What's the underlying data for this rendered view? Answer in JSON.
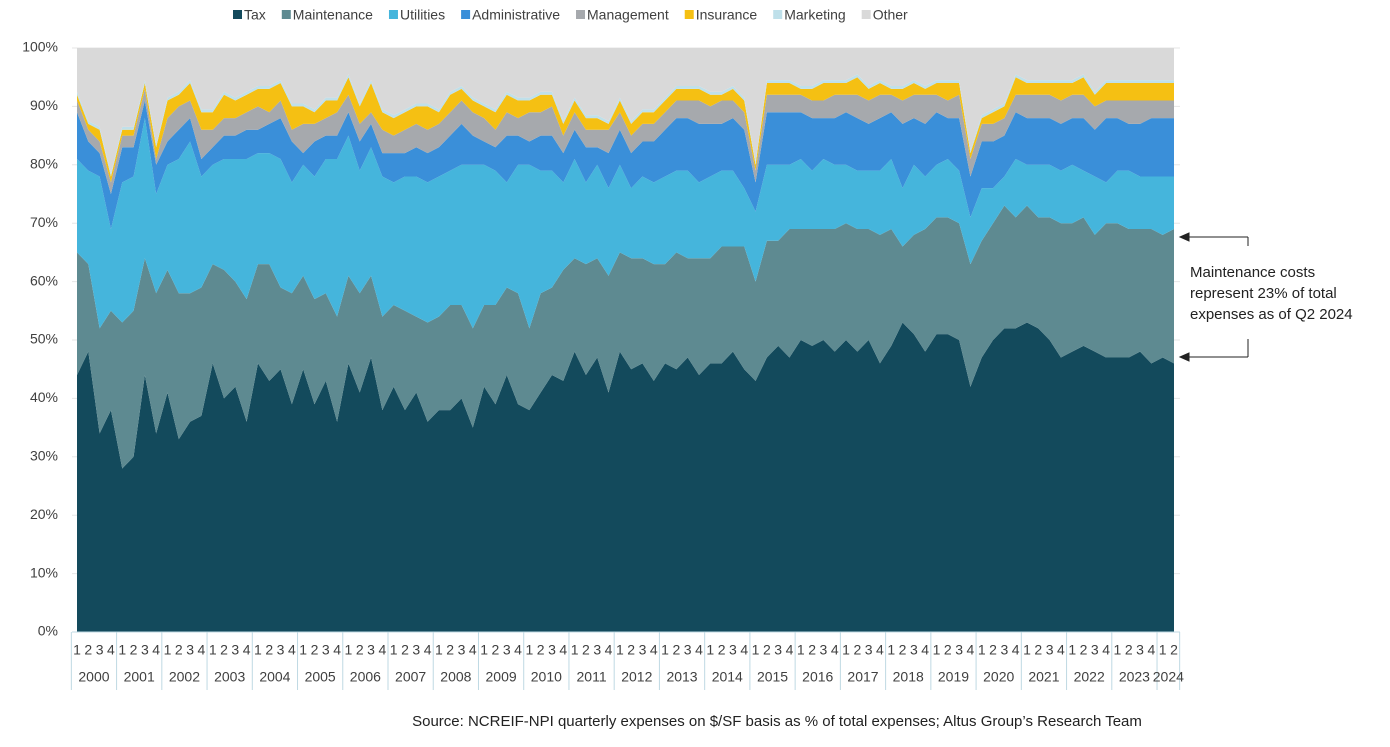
{
  "chart_data": {
    "type": "stacked_area",
    "categories": [
      "1",
      "2",
      "3",
      "4",
      "1",
      "2",
      "3",
      "4",
      "1",
      "2",
      "3",
      "4",
      "1",
      "2",
      "3",
      "4",
      "1",
      "2",
      "3",
      "4",
      "1",
      "2",
      "3",
      "4",
      "1",
      "2",
      "3",
      "4",
      "1",
      "2",
      "3",
      "4",
      "1",
      "2",
      "3",
      "4",
      "1",
      "2",
      "3",
      "4",
      "1",
      "2",
      "3",
      "4",
      "1",
      "2",
      "3",
      "4",
      "1",
      "2",
      "3",
      "4",
      "1",
      "2",
      "3",
      "4",
      "1",
      "2",
      "3",
      "4",
      "1",
      "2",
      "3",
      "4",
      "1",
      "2",
      "3",
      "4",
      "1",
      "2",
      "3",
      "4",
      "1",
      "2",
      "3",
      "4",
      "1",
      "2",
      "3",
      "4",
      "1",
      "2",
      "3",
      "4",
      "1",
      "2",
      "3",
      "4",
      "1",
      "2",
      "3",
      "4",
      "1",
      "2",
      "3",
      "4",
      "1",
      "2"
    ],
    "years": [
      "2000",
      "2001",
      "2002",
      "2003",
      "2004",
      "2005",
      "2006",
      "2007",
      "2008",
      "2009",
      "2010",
      "2011",
      "2012",
      "2013",
      "2014",
      "2015",
      "2016",
      "2017",
      "2018",
      "2019",
      "2020",
      "2021",
      "2022",
      "2023",
      "2024"
    ],
    "ylim": [
      0,
      100
    ],
    "yticks": [
      {
        "value": 0,
        "label": "0%"
      },
      {
        "value": 10,
        "label": "10%"
      },
      {
        "value": 20,
        "label": "20%"
      },
      {
        "value": 30,
        "label": "30%"
      },
      {
        "value": 40,
        "label": "40%"
      },
      {
        "value": 50,
        "label": "50%"
      },
      {
        "value": 60,
        "label": "60%"
      },
      {
        "value": 70,
        "label": "70%"
      },
      {
        "value": 80,
        "label": "80%"
      },
      {
        "value": 90,
        "label": "90%"
      },
      {
        "value": 100,
        "label": "100%"
      }
    ],
    "grid": true,
    "legend": "top",
    "series": [
      {
        "name": "Tax",
        "color": "#134a5c",
        "values": [
          44,
          48,
          34,
          38,
          28,
          30,
          44,
          34,
          41,
          33,
          36,
          37,
          46,
          40,
          42,
          36,
          46,
          43,
          45,
          39,
          45,
          39,
          43,
          36,
          46,
          41,
          47,
          38,
          42,
          38,
          41,
          36,
          38,
          38,
          40,
          35,
          42,
          39,
          44,
          39,
          38,
          41,
          44,
          43,
          48,
          44,
          47,
          41,
          48,
          45,
          46,
          43,
          46,
          45,
          47,
          44,
          46,
          46,
          48,
          45,
          43,
          47,
          49,
          47,
          50,
          49,
          50,
          48,
          50,
          48,
          50,
          46,
          49,
          53,
          51,
          48,
          51,
          51,
          50,
          42,
          47,
          50,
          52,
          52,
          53,
          52,
          50,
          47,
          48,
          49,
          48,
          47,
          47,
          47,
          48,
          46,
          47,
          46
        ]
      },
      {
        "name": "Maintenance",
        "color": "#5e8a91",
        "values": [
          21,
          15,
          18,
          17,
          25,
          25,
          20,
          24,
          21,
          25,
          22,
          22,
          17,
          22,
          18,
          21,
          17,
          20,
          14,
          19,
          16,
          18,
          15,
          18,
          15,
          17,
          14,
          16,
          14,
          17,
          13,
          17,
          16,
          18,
          16,
          17,
          14,
          17,
          15,
          19,
          14,
          17,
          15,
          19,
          16,
          19,
          17,
          20,
          17,
          19,
          18,
          20,
          17,
          20,
          17,
          20,
          18,
          20,
          18,
          21,
          17,
          20,
          18,
          22,
          19,
          20,
          19,
          21,
          20,
          21,
          19,
          22,
          20,
          13,
          17,
          21,
          20,
          20,
          20,
          21,
          20,
          20,
          21,
          19,
          20,
          19,
          21,
          23,
          22,
          22,
          20,
          23,
          23,
          22,
          21,
          23,
          21,
          23
        ]
      },
      {
        "name": "Utilities",
        "color": "#45b5dc",
        "values": [
          16,
          16,
          26,
          14,
          24,
          23,
          24,
          17,
          18,
          23,
          26,
          19,
          17,
          19,
          21,
          24,
          19,
          19,
          22,
          19,
          19,
          21,
          23,
          27,
          24,
          21,
          22,
          24,
          21,
          23,
          24,
          24,
          24,
          23,
          24,
          28,
          24,
          23,
          18,
          22,
          28,
          21,
          20,
          15,
          17,
          14,
          16,
          15,
          15,
          12,
          14,
          14,
          15,
          14,
          15,
          13,
          14,
          13,
          13,
          10,
          12,
          13,
          13,
          11,
          12,
          10,
          12,
          11,
          10,
          10,
          10,
          11,
          12,
          10,
          12,
          9,
          9,
          10,
          9,
          8,
          9,
          6,
          5,
          10,
          7,
          9,
          9,
          9,
          10,
          8,
          10,
          7,
          9,
          10,
          9,
          9,
          10,
          9
        ]
      },
      {
        "name": "Administrative",
        "color": "#3a8fd9",
        "values": [
          8,
          5,
          4,
          6,
          6,
          5,
          3,
          5,
          4,
          5,
          4,
          3,
          3,
          4,
          4,
          5,
          4,
          5,
          7,
          7,
          2,
          6,
          4,
          4,
          4,
          5,
          4,
          4,
          5,
          4,
          5,
          5,
          5,
          6,
          7,
          5,
          4,
          4,
          8,
          5,
          4,
          6,
          6,
          5,
          5,
          6,
          3,
          6,
          6,
          6,
          6,
          7,
          8,
          9,
          9,
          10,
          9,
          8,
          9,
          10,
          5,
          9,
          9,
          9,
          8,
          9,
          7,
          8,
          9,
          9,
          8,
          9,
          8,
          11,
          8,
          9,
          9,
          7,
          9,
          7,
          8,
          8,
          7,
          8,
          8,
          8,
          8,
          8,
          8,
          9,
          8,
          11,
          9,
          8,
          9,
          10,
          10,
          10
        ]
      },
      {
        "name": "Management",
        "color": "#a6a9ad",
        "values": [
          2,
          2,
          2,
          2,
          2,
          2,
          2,
          1,
          4,
          4,
          3,
          5,
          3,
          3,
          3,
          3,
          4,
          2,
          3,
          2,
          5,
          3,
          3,
          4,
          3,
          3,
          2,
          4,
          3,
          4,
          4,
          4,
          4,
          4,
          4,
          4,
          4,
          3,
          4,
          3,
          5,
          4,
          5,
          3,
          3,
          3,
          3,
          4,
          3,
          3,
          3,
          3,
          3,
          3,
          3,
          4,
          3,
          4,
          3,
          3,
          2,
          3,
          3,
          3,
          3,
          3,
          3,
          4,
          3,
          4,
          4,
          4,
          3,
          4,
          4,
          5,
          3,
          3,
          4,
          3,
          3,
          3,
          3,
          3,
          4,
          4,
          4,
          4,
          4,
          4,
          4,
          3,
          3,
          4,
          4,
          3,
          3,
          3
        ]
      },
      {
        "name": "Insurance",
        "color": "#f5c013",
        "values": [
          1,
          1,
          2,
          1,
          1,
          1,
          1,
          2,
          3,
          2,
          3,
          3,
          3,
          4,
          3,
          3,
          3,
          4,
          3,
          4,
          3,
          2,
          3,
          2,
          3,
          3,
          5,
          3,
          3,
          3,
          3,
          4,
          2,
          3,
          2,
          2,
          2,
          3,
          3,
          3,
          2,
          3,
          2,
          2,
          2,
          2,
          2,
          1,
          2,
          2,
          2,
          2,
          2,
          2,
          2,
          2,
          2,
          1,
          2,
          2,
          1,
          2,
          2,
          2,
          1,
          2,
          3,
          2,
          2,
          3,
          2,
          2,
          1,
          2,
          2,
          1,
          2,
          3,
          2,
          1,
          1,
          2,
          2,
          3,
          2,
          2,
          2,
          3,
          2,
          3,
          2,
          3,
          3,
          3,
          3,
          3,
          3,
          3
        ]
      },
      {
        "name": "Marketing",
        "color": "#bfe0ea",
        "values": [
          0.5,
          0.5,
          0.5,
          0.5,
          0.5,
          0.5,
          0.5,
          0.5,
          0.5,
          0.5,
          0.5,
          0.5,
          0.5,
          0.5,
          0.5,
          0.5,
          0.5,
          0.5,
          0.5,
          0.5,
          0.5,
          0.5,
          0.5,
          0.5,
          0.5,
          0.5,
          0.5,
          0.5,
          0.5,
          0.5,
          0.5,
          0.5,
          0.5,
          0.5,
          0.5,
          0.5,
          0.5,
          0.5,
          0.5,
          0.5,
          0.5,
          0.5,
          0.5,
          0.5,
          0.5,
          0.5,
          0.5,
          0.5,
          0.5,
          0.5,
          0.5,
          0.5,
          0.5,
          0.5,
          0.5,
          0.5,
          0.5,
          0.5,
          0.5,
          0.5,
          0.5,
          0.5,
          0.5,
          0.5,
          0.5,
          0.5,
          0.5,
          0.5,
          0.5,
          0.5,
          0.5,
          0.5,
          0.5,
          0.5,
          0.5,
          0.5,
          0.5,
          0.5,
          0.5,
          0.5,
          0.5,
          0.5,
          0.5,
          0.5,
          0.5,
          0.5,
          0.5,
          0.5,
          0.5,
          0.5,
          0.5,
          0.5,
          0.5,
          0.5,
          0.5,
          0.5,
          0.5,
          0.5
        ]
      },
      {
        "name": "Other",
        "color": "#d9d9d9",
        "values": [
          7.5,
          12.5,
          13.5,
          21.5,
          13.5,
          13.5,
          5.5,
          16.5,
          8.5,
          7.5,
          5.5,
          10.5,
          10.5,
          7.5,
          8.5,
          7.5,
          6.5,
          6.5,
          5.5,
          9.5,
          9.5,
          10.5,
          8.5,
          8.5,
          4.5,
          9.5,
          5.5,
          10.5,
          11.5,
          10.5,
          9.5,
          9.5,
          10.5,
          7.5,
          6.5,
          8.5,
          9.5,
          10.5,
          7.5,
          8.5,
          8.5,
          7.5,
          7.5,
          12.5,
          8.5,
          11.5,
          11.5,
          12.5,
          8.5,
          12.5,
          10.5,
          10.5,
          8.5,
          6.5,
          6.5,
          6.5,
          7.5,
          7.5,
          6.5,
          8.5,
          19.5,
          5.5,
          5.5,
          5.5,
          6.5,
          6.5,
          5.5,
          5.5,
          5.5,
          4.5,
          6.5,
          5.5,
          6.5,
          6.5,
          5.5,
          6.5,
          5.5,
          5.5,
          5.5,
          17.5,
          11.5,
          10.5,
          9.5,
          4.5,
          5.5,
          5.5,
          5.5,
          5.5,
          5.5,
          4.5,
          7.5,
          5.5,
          5.5,
          5.5,
          5.5,
          5.5,
          5.5,
          5.5
        ]
      }
    ],
    "annotation": [
      "Maintenance costs",
      "represent 23% of total",
      "expenses as of Q2 2024"
    ],
    "source": "Source: NCREIF-NPI quarterly expenses on $/SF basis as % of total expenses; Altus Group’s Research Team"
  }
}
